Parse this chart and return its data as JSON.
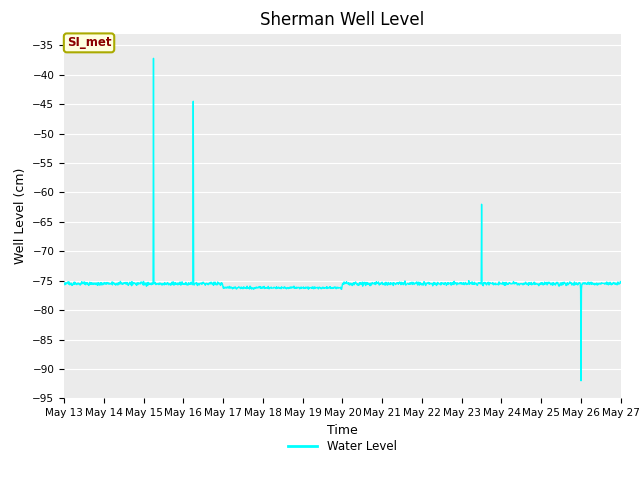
{
  "title": "Sherman Well Level",
  "xlabel": "Time",
  "ylabel": "Well Level (cm)",
  "line_color": "#00FFFF",
  "line_width": 1.0,
  "bg_color": "#EBEBEB",
  "ylim": [
    -95,
    -33
  ],
  "yticks": [
    -95,
    -90,
    -85,
    -80,
    -75,
    -70,
    -65,
    -60,
    -55,
    -50,
    -45,
    -40,
    -35
  ],
  "legend_label": "Water Level",
  "legend_label_color": "#00FFFF",
  "annotation_text": "SI_met",
  "annotation_text_color": "#8B0000",
  "annotation_bg": "#FFFFE0",
  "annotation_border": "#AAAA00",
  "title_fontsize": 12,
  "axis_label_fontsize": 9,
  "tick_fontsize": 7.5,
  "fig_width": 6.4,
  "fig_height": 4.8
}
